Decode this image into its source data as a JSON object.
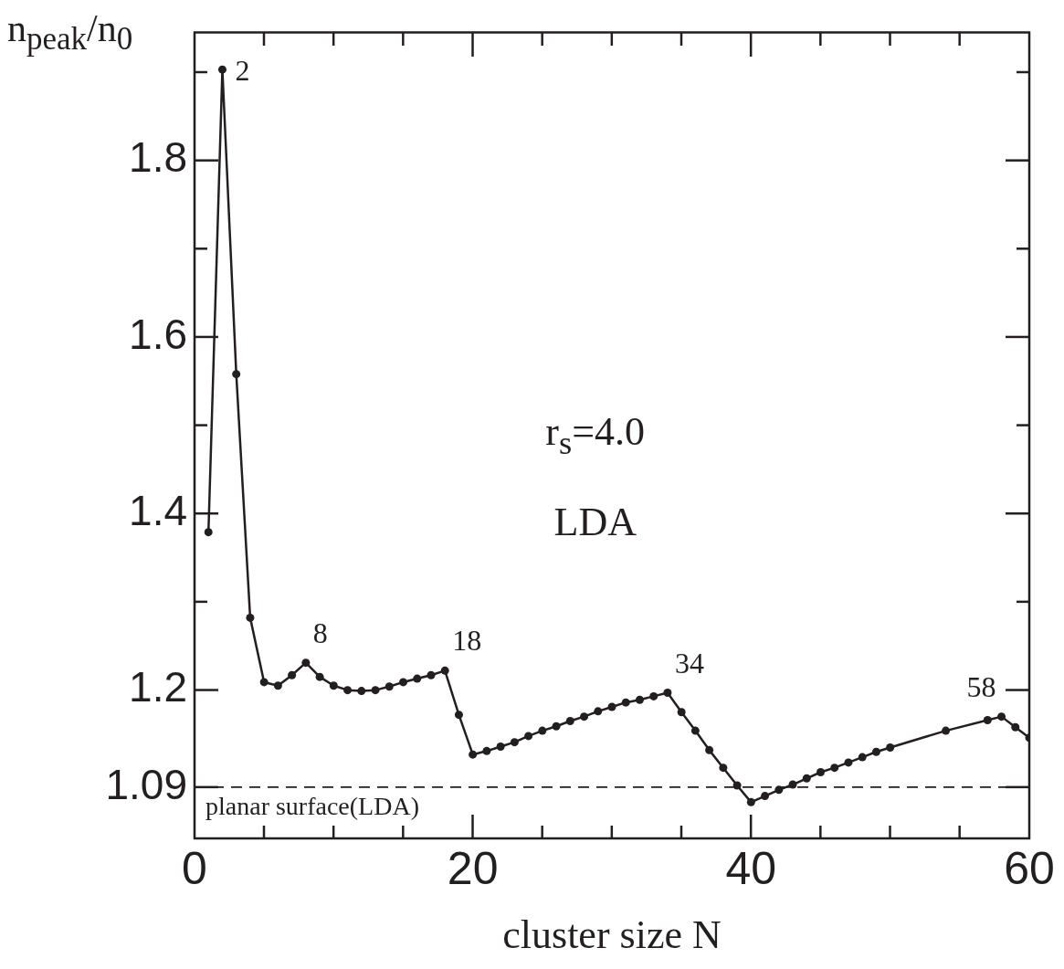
{
  "chart_data": {
    "type": "line",
    "xlabel": "cluster size N",
    "ylabel": "n$_{peak}$/n$_{0}$",
    "x": [
      1,
      2,
      3,
      4,
      5,
      6,
      7,
      8,
      9,
      10,
      11,
      12,
      13,
      14,
      15,
      16,
      17,
      18,
      19,
      20,
      21,
      22,
      23,
      24,
      25,
      26,
      27,
      28,
      29,
      30,
      31,
      32,
      33,
      34,
      35,
      36,
      37,
      38,
      39,
      40,
      41,
      42,
      43,
      44,
      45,
      46,
      47,
      48,
      49,
      50,
      54,
      57,
      58,
      59,
      60
    ],
    "series": [
      {
        "color": "#231f20",
        "values": [
          1.379,
          1.903,
          1.558,
          1.282,
          1.209,
          1.205,
          1.217,
          1.231,
          1.215,
          1.205,
          1.2,
          1.199,
          1.2,
          1.204,
          1.209,
          1.213,
          1.217,
          1.222,
          1.172,
          1.127,
          1.131,
          1.136,
          1.141,
          1.148,
          1.154,
          1.159,
          1.165,
          1.17,
          1.176,
          1.181,
          1.186,
          1.189,
          1.193,
          1.197,
          1.175,
          1.154,
          1.132,
          1.112,
          1.092,
          1.073,
          1.08,
          1.087,
          1.093,
          1.1,
          1.107,
          1.112,
          1.118,
          1.124,
          1.13,
          1.135,
          1.154,
          1.166,
          1.17,
          1.158,
          1.146
        ]
      }
    ],
    "xlim": [
      0,
      60
    ],
    "xticks": [
      0,
      {
        "value": 5,
        "label": null
      },
      {
        "value": 10,
        "label": null
      },
      {
        "value": 15,
        "label": null
      },
      20,
      {
        "value": 25,
        "label": null
      },
      {
        "value": 30,
        "label": null
      },
      {
        "value": 35,
        "label": null
      },
      40,
      {
        "value": 45,
        "label": null
      },
      {
        "value": 50,
        "label": null
      },
      {
        "value": 55,
        "label": null
      },
      60
    ],
    "ylim": [
      1.032,
      1.945
    ],
    "yticks": [
      1.09,
      1.2,
      {
        "value": 1.3,
        "label": null
      },
      1.4,
      {
        "value": 1.5,
        "label": null
      },
      1.6,
      {
        "value": 1.7,
        "label": null
      },
      1.8,
      {
        "value": 1.9,
        "label": null
      }
    ],
    "marker": "circle",
    "line_style": "solid",
    "legend": false,
    "ref_lines": [
      {
        "axis": "y",
        "value": 1.09,
        "label": "planar surface(LDA)",
        "line_style": "dashed",
        "color": "#231f20"
      }
    ],
    "annotations": [
      {
        "text": "2",
        "x": 2,
        "y": 1.903
      },
      {
        "text": "8",
        "x": 8,
        "y": 1.231
      },
      {
        "text": "18",
        "x": 18,
        "y": 1.222
      },
      {
        "text": "34",
        "x": 34,
        "y": 1.197
      },
      {
        "text": "58",
        "x": 58,
        "y": 1.17
      },
      "r$_{s}$=4.0",
      "LDA"
    ]
  }
}
